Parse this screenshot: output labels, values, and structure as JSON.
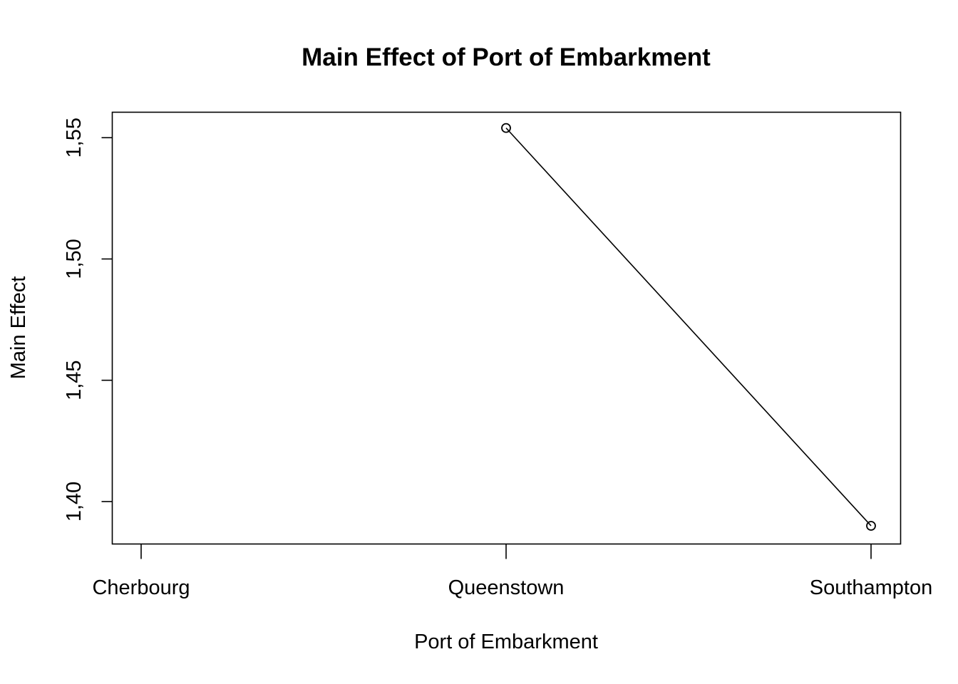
{
  "chart_data": {
    "type": "line",
    "title": "Main Effect of Port of Embarkment",
    "xlabel": "Port of Embarkment",
    "ylabel": "Main Effect",
    "categories": [
      "Cherbourg",
      "Queenstown",
      "Southampton"
    ],
    "series": [
      {
        "values": [
          null,
          1.554,
          1.39
        ]
      }
    ],
    "ylim": [
      1.3825,
      1.5605
    ],
    "yticks": [
      1.4,
      1.45,
      1.5,
      1.55
    ],
    "ytick_labels": [
      "1,40",
      "1,45",
      "1,50",
      "1,55"
    ],
    "grid": false,
    "marker": "open-circle",
    "colors": {
      "line": "#000000",
      "background": "#ffffff"
    }
  }
}
